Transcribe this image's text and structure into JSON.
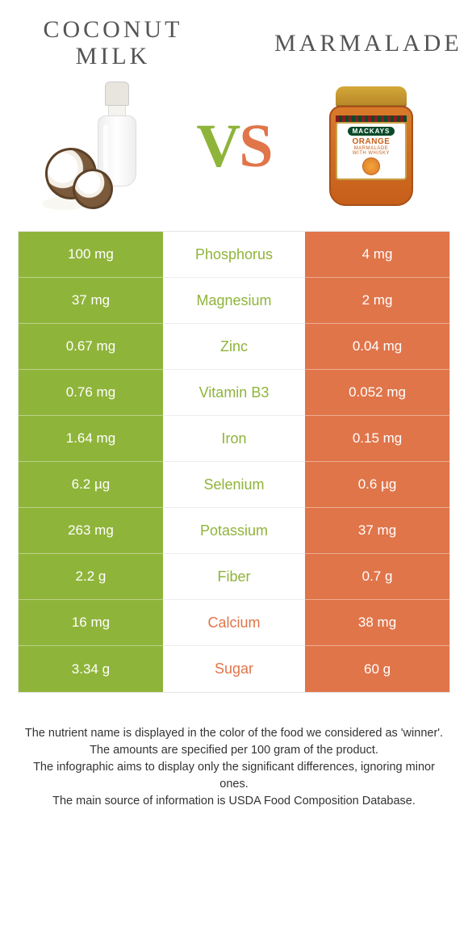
{
  "colors": {
    "green": "#8fb43a",
    "orange": "#e0754a",
    "mid_green": "#8fb43a",
    "mid_orange": "#e0754a"
  },
  "left_title": "Coconut milk",
  "right_title": "Marmalade",
  "vs_v": "V",
  "vs_s": "S",
  "jar": {
    "brand": "MACKAYS",
    "name": "ORANGE",
    "sub1": "MARMALADE",
    "sub2": "WITH WHISKY"
  },
  "rows": [
    {
      "nutrient": "Phosphorus",
      "left": "100 mg",
      "right": "4 mg",
      "winner": "left"
    },
    {
      "nutrient": "Magnesium",
      "left": "37 mg",
      "right": "2 mg",
      "winner": "left"
    },
    {
      "nutrient": "Zinc",
      "left": "0.67 mg",
      "right": "0.04 mg",
      "winner": "left"
    },
    {
      "nutrient": "Vitamin B3",
      "left": "0.76 mg",
      "right": "0.052 mg",
      "winner": "left"
    },
    {
      "nutrient": "Iron",
      "left": "1.64 mg",
      "right": "0.15 mg",
      "winner": "left"
    },
    {
      "nutrient": "Selenium",
      "left": "6.2 µg",
      "right": "0.6 µg",
      "winner": "left"
    },
    {
      "nutrient": "Potassium",
      "left": "263 mg",
      "right": "37 mg",
      "winner": "left"
    },
    {
      "nutrient": "Fiber",
      "left": "2.2 g",
      "right": "0.7 g",
      "winner": "left"
    },
    {
      "nutrient": "Calcium",
      "left": "16 mg",
      "right": "38 mg",
      "winner": "right"
    },
    {
      "nutrient": "Sugar",
      "left": "3.34 g",
      "right": "60 g",
      "winner": "right"
    }
  ],
  "footer": {
    "l1": "The nutrient name is displayed in the color of the food we considered as 'winner'.",
    "l2": "The amounts are specified per 100 gram of the product.",
    "l3": "The infographic aims to display only the significant differences, ignoring minor ones.",
    "l4": "The main source of information is USDA Food Composition Database."
  }
}
